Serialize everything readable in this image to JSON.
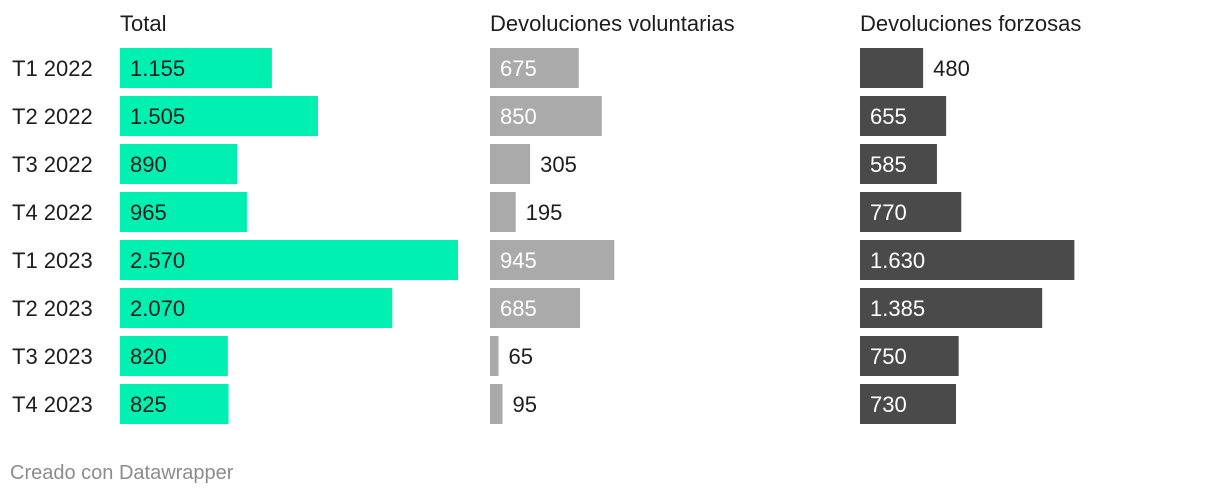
{
  "chart_data": {
    "type": "bar",
    "orientation": "horizontal",
    "categories": [
      "T1 2022",
      "T2 2022",
      "T3 2022",
      "T4 2022",
      "T1 2023",
      "T2 2023",
      "T3 2023",
      "T4 2023"
    ],
    "series": [
      {
        "name": "Total",
        "color": "#00f0b2",
        "values": [
          1155,
          1505,
          890,
          965,
          2570,
          2070,
          820,
          825
        ],
        "labels": [
          "1.155",
          "1.505",
          "890",
          "965",
          "2.570",
          "2.070",
          "820",
          "825"
        ]
      },
      {
        "name": "Devoluciones voluntarias",
        "color": "#aaaaaa",
        "values": [
          675,
          850,
          305,
          195,
          945,
          685,
          65,
          95
        ],
        "labels": [
          "675",
          "850",
          "305",
          "195",
          "945",
          "685",
          "65",
          "95"
        ]
      },
      {
        "name": "Devoluciones forzosas",
        "color": "#4a4a4a",
        "values": [
          480,
          655,
          585,
          770,
          1630,
          1385,
          750,
          730
        ],
        "labels": [
          "480",
          "655",
          "585",
          "770",
          "1.630",
          "1.385",
          "750",
          "730"
        ]
      }
    ],
    "xlim": [
      0,
      2600
    ],
    "grid": false,
    "legend": "none"
  },
  "footer": {
    "credit": "Creado con Datawrapper"
  }
}
